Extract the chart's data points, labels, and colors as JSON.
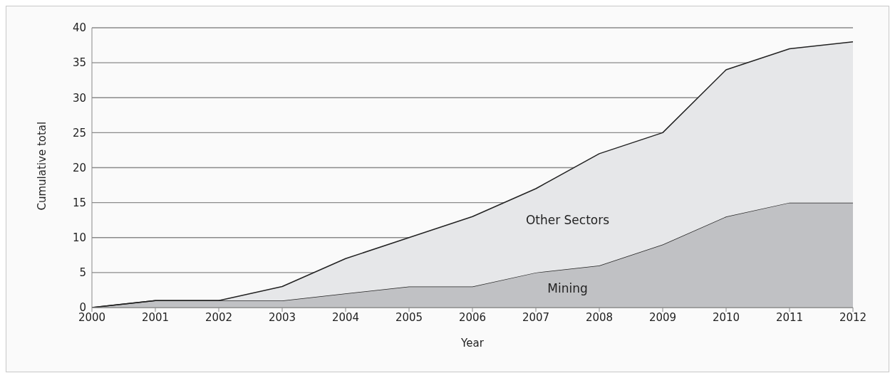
{
  "chart_data": {
    "type": "area",
    "stacked": true,
    "xlabel": "Year",
    "ylabel": "Cumulative total",
    "x": [
      2000,
      2001,
      2002,
      2003,
      2004,
      2005,
      2006,
      2007,
      2008,
      2009,
      2010,
      2011,
      2012
    ],
    "series": [
      {
        "name": "Mining",
        "color": "#c0c1c4",
        "values": [
          0,
          1,
          1,
          1,
          2,
          3,
          3,
          5,
          6,
          9,
          13,
          15,
          15
        ]
      },
      {
        "name": "Other Sectors",
        "color": "#e6e7e9",
        "values": [
          0,
          0,
          0,
          2,
          5,
          7,
          10,
          12,
          16,
          16,
          21,
          22,
          23
        ]
      }
    ],
    "xlim": [
      2000,
      2012
    ],
    "xticks": [
      2000,
      2001,
      2002,
      2003,
      2004,
      2005,
      2006,
      2007,
      2008,
      2009,
      2010,
      2011,
      2012
    ],
    "ylim": [
      0,
      40
    ],
    "yticks": [
      0,
      5,
      10,
      15,
      20,
      25,
      30,
      35,
      40
    ],
    "grid": "y"
  }
}
